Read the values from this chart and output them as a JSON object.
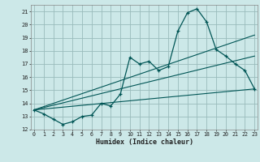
{
  "title": "",
  "xlabel": "Humidex (Indice chaleur)",
  "bg_color": "#cce8e8",
  "grid_color": "#99bbbb",
  "line_color": "#005555",
  "xmin": 0,
  "xmax": 23,
  "ymin": 12,
  "ymax": 21,
  "xtick_labels": [
    "0",
    "1",
    "2",
    "3",
    "4",
    "5",
    "6",
    "7",
    "8",
    "9",
    "10",
    "11",
    "12",
    "13",
    "14",
    "15",
    "16",
    "17",
    "18",
    "19",
    "20",
    "21",
    "22",
    "23"
  ],
  "ytick_labels": [
    "12",
    "13",
    "14",
    "15",
    "16",
    "17",
    "18",
    "19",
    "20",
    "21"
  ],
  "main_x": [
    0,
    1,
    2,
    3,
    4,
    5,
    6,
    7,
    8,
    9,
    10,
    11,
    12,
    13,
    14,
    15,
    16,
    17,
    18,
    19,
    20,
    21,
    22,
    23
  ],
  "main_y": [
    13.5,
    13.2,
    12.8,
    12.4,
    12.6,
    13.0,
    13.1,
    14.0,
    13.8,
    14.7,
    17.5,
    17.0,
    17.2,
    16.5,
    16.8,
    19.5,
    20.9,
    21.2,
    20.2,
    18.1,
    17.6,
    17.0,
    16.5,
    15.1
  ],
  "line2_x": [
    0,
    23
  ],
  "line2_y": [
    13.5,
    19.2
  ],
  "line3_x": [
    0,
    23
  ],
  "line3_y": [
    13.5,
    17.6
  ],
  "line4_x": [
    0,
    23
  ],
  "line4_y": [
    13.5,
    15.1
  ]
}
